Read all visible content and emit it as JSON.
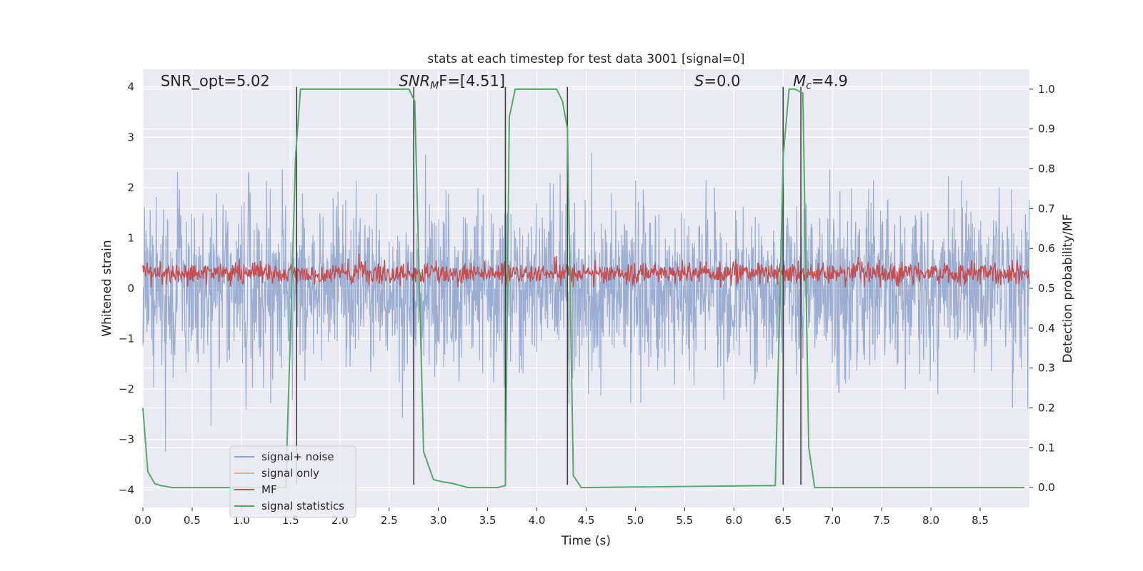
{
  "chart_data": {
    "type": "line",
    "title": "stats at each timestep for test data 3001 [signal=0]",
    "xlabel": "Time (s)",
    "ylabel": "Whitened strain",
    "ylabel_right": "Detection probability/MF",
    "xlim": [
      0.0,
      9.0
    ],
    "ylim": [
      -4.35,
      4.35
    ],
    "ylim_right": [
      -0.05,
      1.05
    ],
    "x_ticks": [
      0.0,
      0.5,
      1.0,
      1.5,
      2.0,
      2.5,
      3.0,
      3.5,
      4.0,
      4.5,
      5.0,
      5.5,
      6.0,
      6.5,
      7.0,
      7.5,
      8.0,
      8.5
    ],
    "x_tick_labels": [
      "0.0",
      "0.5",
      "1.0",
      "1.5",
      "2.0",
      "2.5",
      "3.0",
      "3.5",
      "4.0",
      "4.5",
      "5.0",
      "5.5",
      "6.0",
      "6.5",
      "7.0",
      "7.5",
      "8.0",
      "8.5"
    ],
    "y_ticks": [
      4,
      3,
      2,
      1,
      0,
      -1,
      -2,
      -3,
      -4
    ],
    "y_tick_labels": [
      "4",
      "3",
      "2",
      "1",
      "0",
      "−1",
      "−2",
      "−3",
      "−4"
    ],
    "y_ticks_right": [
      1.0,
      0.9,
      0.8,
      0.7,
      0.6,
      0.5,
      0.4,
      0.3,
      0.2,
      0.1,
      0.0
    ],
    "y_tick_labels_right": [
      "1.0",
      "0.9",
      "0.8",
      "0.7",
      "0.6",
      "0.5",
      "0.4",
      "0.3",
      "0.2",
      "0.1",
      "0.0"
    ],
    "grid": true,
    "annotations": [
      {
        "id": "snr-opt",
        "text": "SNR_opt=5.02",
        "x": 0.18,
        "y": 4.1,
        "italic_prefix": ""
      },
      {
        "id": "snr-mf",
        "text_main": "SNR",
        "text_sub": "M",
        "text_rest": "F=[4.51]",
        "x": 2.6,
        "y": 4.1
      },
      {
        "id": "s-stat",
        "text_main": "S",
        "text_rest": "=0.0",
        "x": 5.6,
        "y": 4.1
      },
      {
        "id": "mc",
        "text_main": "M",
        "text_sub": "c",
        "text_rest": "=4.9",
        "x": 6.6,
        "y": 4.1
      }
    ],
    "vertical_lines": [
      1.56,
      2.75,
      3.68,
      4.31,
      6.5,
      6.68
    ],
    "vertical_line_range": [
      -3.9,
      4.0
    ],
    "series": [
      {
        "name": "signal+ noise",
        "color": "#4c72b0",
        "alpha": 0.5,
        "noise_model": {
          "sigma": 0.85,
          "seed": 3001,
          "samples": 2200
        }
      },
      {
        "name": "signal only",
        "color": "#dd8452",
        "values": []
      },
      {
        "name": "MF",
        "color": "#c44e52",
        "axis": "left",
        "noise_model": {
          "center": 0.3,
          "spread": 0.16,
          "seed": 42,
          "samples": 1600
        }
      },
      {
        "name": "signal statistics",
        "color": "#55a868",
        "axis": "right",
        "x": [
          0.0,
          0.05,
          0.12,
          0.18,
          0.3,
          1.45,
          1.5,
          1.55,
          1.6,
          2.65,
          2.7,
          2.76,
          2.85,
          2.95,
          3.03,
          3.15,
          3.3,
          3.6,
          3.68,
          3.72,
          3.78,
          3.95,
          4.2,
          4.26,
          4.31,
          4.37,
          4.45,
          6.42,
          6.46,
          6.5,
          6.56,
          6.62,
          6.7,
          6.76,
          6.82,
          6.9,
          8.95
        ],
        "values": [
          0.2,
          0.04,
          0.01,
          0.005,
          0.0,
          0.0,
          0.4,
          0.83,
          1.0,
          1.0,
          1.0,
          0.97,
          0.09,
          0.02,
          0.015,
          0.01,
          0.0,
          0.0,
          0.005,
          0.93,
          1.0,
          1.0,
          1.0,
          0.97,
          0.9,
          0.03,
          0.0,
          0.005,
          0.4,
          0.83,
          1.0,
          1.0,
          0.99,
          0.1,
          0.0,
          0.0,
          0.0
        ]
      }
    ],
    "legend": {
      "placement": "lower-left",
      "entries": [
        "signal+ noise",
        "signal only",
        "MF",
        "signal statistics"
      ]
    },
    "colors": {
      "background": "#eaeaf2",
      "grid": "#ffffff",
      "vline": "#404040",
      "text": "#262626"
    }
  }
}
